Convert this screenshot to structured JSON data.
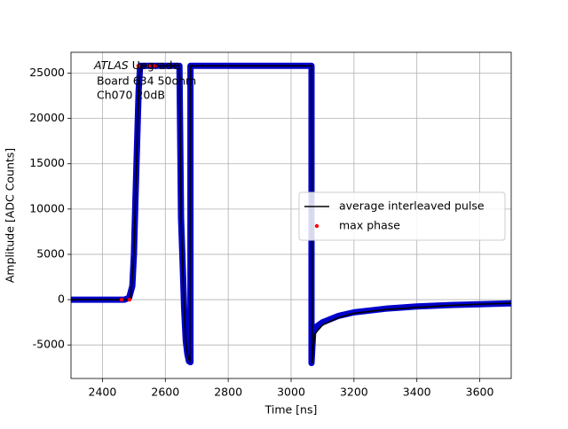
{
  "chart_data": {
    "type": "line",
    "xlabel": "Time [ns]",
    "ylabel": "Amplitude [ADC Counts]",
    "annotation": [
      "ATLAS",
      "Upgrade",
      "Board 634 50ohm",
      "Ch070 20dB"
    ],
    "xlim": [
      2300,
      3700
    ],
    "xticks": [
      2400,
      2600,
      2800,
      3000,
      3200,
      3400,
      3600
    ],
    "ylim": [
      -8700,
      27300
    ],
    "yticks": [
      -5000,
      0,
      5000,
      10000,
      15000,
      20000,
      25000
    ],
    "grid": true,
    "legend": "center right",
    "series": [
      {
        "color": "#0000cc",
        "x": [
          2300,
          2470,
          2485,
          2495,
          2500,
          2505,
          2510,
          2515,
          2520,
          2600,
          2645,
          2650,
          2655,
          2660,
          2665,
          2670,
          2675,
          2680,
          2680,
          2800,
          3000,
          3065,
          3065,
          3070,
          3080,
          3100,
          3150,
          3200,
          3300,
          3400,
          3500,
          3600,
          3700
        ],
        "values": [
          0,
          0,
          200,
          1500,
          5000,
          11000,
          17000,
          23000,
          25800,
          25800,
          25800,
          9000,
          4000,
          -1000,
          -4500,
          -6000,
          -6800,
          -6900,
          25800,
          25800,
          25800,
          25800,
          -7000,
          -3700,
          -3000,
          -2500,
          -1800,
          -1400,
          -1000,
          -750,
          -600,
          -500,
          -400
        ]
      },
      {
        "name": "average interleaved pulse",
        "color": "#000000",
        "x": [
          2300,
          2480,
          2490,
          2500,
          2505,
          2510,
          2515,
          2520,
          2645,
          2650,
          2655,
          2660,
          2665,
          2670,
          2678,
          2680,
          3065,
          3067,
          3075,
          3100,
          3150,
          3200,
          3300,
          3400,
          3500,
          3600,
          3700
        ],
        "values": [
          0,
          0,
          300,
          5000,
          11000,
          17000,
          23000,
          25800,
          25800,
          9000,
          4000,
          -1000,
          -4500,
          -6000,
          -6900,
          25800,
          25800,
          -7000,
          -3800,
          -2800,
          -2000,
          -1500,
          -1100,
          -850,
          -650,
          -500,
          -400
        ]
      },
      {
        "name": "max phase",
        "color": "#ff0000",
        "marker": "dot",
        "x": [
          2461,
          2486,
          2514,
          2548,
          2568
        ],
        "values": [
          0,
          0,
          25800,
          25800,
          25800
        ]
      }
    ]
  }
}
